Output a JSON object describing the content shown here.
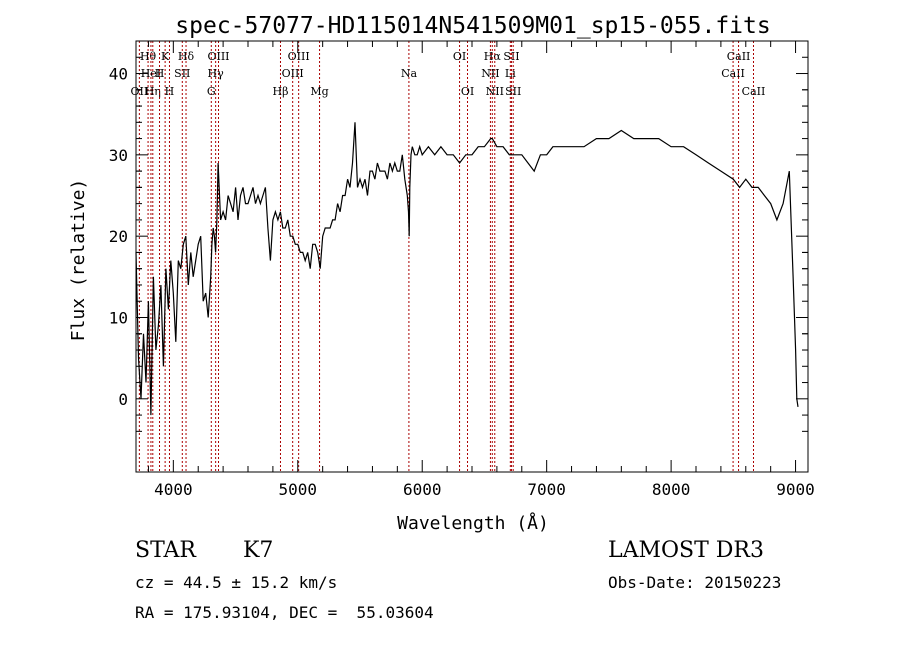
{
  "chart_data": {
    "type": "line",
    "title": "spec-57077-HD115014N541509M01_sp15-055.fits",
    "xlabel": "Wavelength (Å)",
    "ylabel": "Flux (relative)",
    "xlim": [
      3700,
      9100
    ],
    "ylim": [
      -9,
      44
    ],
    "x_ticks": [
      4000,
      5000,
      6000,
      7000,
      8000,
      9000
    ],
    "y_ticks": [
      0,
      10,
      20,
      30,
      40
    ],
    "grid": false,
    "series": [
      {
        "x": [
          3700,
          3720,
          3740,
          3760,
          3780,
          3800,
          3820,
          3840,
          3860,
          3880,
          3900,
          3920,
          3940,
          3960,
          3980,
          4000,
          4020,
          4040,
          4060,
          4080,
          4100,
          4120,
          4140,
          4160,
          4180,
          4200,
          4220,
          4240,
          4260,
          4280,
          4300,
          4310,
          4320,
          4330,
          4340,
          4350,
          4360,
          4380,
          4400,
          4420,
          4440,
          4460,
          4480,
          4500,
          4520,
          4540,
          4560,
          4580,
          4600,
          4620,
          4640,
          4660,
          4680,
          4700,
          4720,
          4740,
          4760,
          4780,
          4800,
          4820,
          4840,
          4860,
          4880,
          4900,
          4920,
          4940,
          4960,
          4980,
          5000,
          5020,
          5040,
          5060,
          5080,
          5100,
          5120,
          5140,
          5160,
          5180,
          5200,
          5220,
          5240,
          5260,
          5280,
          5300,
          5320,
          5340,
          5360,
          5380,
          5400,
          5420,
          5440,
          5460,
          5480,
          5500,
          5520,
          5540,
          5560,
          5580,
          5600,
          5620,
          5640,
          5660,
          5680,
          5700,
          5720,
          5740,
          5760,
          5780,
          5800,
          5820,
          5840,
          5860,
          5880,
          5890,
          5895,
          5900,
          5910,
          5920,
          5940,
          5960,
          5980,
          6000,
          6050,
          6100,
          6150,
          6200,
          6250,
          6300,
          6350,
          6400,
          6450,
          6500,
          6550,
          6563,
          6600,
          6650,
          6700,
          6750,
          6800,
          6850,
          6900,
          6950,
          7000,
          7050,
          7100,
          7150,
          7200,
          7300,
          7400,
          7500,
          7600,
          7700,
          7800,
          7900,
          8000,
          8100,
          8200,
          8300,
          8400,
          8500,
          8550,
          8600,
          8650,
          8700,
          8750,
          8800,
          8850,
          8900,
          8950,
          8980,
          9000,
          9010,
          9020
        ],
        "values": [
          18,
          5,
          0,
          8,
          2,
          12,
          -2,
          15,
          6,
          9,
          14,
          4,
          16,
          11,
          17,
          13,
          7,
          17,
          16,
          19,
          20,
          14,
          18,
          15,
          17,
          19,
          20,
          12,
          13,
          10,
          15,
          19,
          21,
          20,
          18,
          22,
          29,
          22,
          23,
          22,
          25,
          24,
          23,
          26,
          22,
          25,
          26,
          24,
          24,
          25,
          26,
          24,
          25,
          24,
          25,
          26,
          21,
          17,
          22,
          23,
          22,
          23,
          21,
          21,
          22,
          20,
          20,
          19,
          19,
          18,
          18,
          17,
          18,
          16,
          19,
          19,
          18,
          16,
          20,
          21,
          21,
          21,
          22,
          22,
          24,
          23,
          25,
          25,
          27,
          26,
          29,
          34,
          26,
          27,
          26,
          27,
          25,
          28,
          28,
          27,
          29,
          28,
          28,
          28,
          27,
          29,
          28,
          29,
          28,
          28,
          30,
          27,
          25,
          23,
          20,
          26,
          30,
          31,
          30,
          30,
          31,
          30,
          31,
          30,
          31,
          30,
          30,
          29,
          30,
          30,
          31,
          31,
          32,
          32,
          31,
          31,
          30,
          30,
          30,
          29,
          28,
          30,
          30,
          31,
          31,
          31,
          31,
          31,
          32,
          32,
          33,
          32,
          32,
          32,
          31,
          31,
          30,
          29,
          28,
          27,
          26,
          27,
          26,
          26,
          25,
          24,
          22,
          24,
          28,
          15,
          6,
          0,
          -1
        ]
      }
    ],
    "line_annotations": [
      {
        "label": "Hθ",
        "x": 3797,
        "row": 0
      },
      {
        "label": "OII",
        "x": 3727,
        "row": 2
      },
      {
        "label": "HeI",
        "x": 3820,
        "row": 1
      },
      {
        "label": "Hη",
        "x": 3835,
        "row": 2
      },
      {
        "label": "H",
        "x": 3889,
        "row": 1
      },
      {
        "label": "K",
        "x": 3934,
        "row": 0
      },
      {
        "label": "H",
        "x": 3969,
        "row": 2
      },
      {
        "label": "SII",
        "x": 4072,
        "row": 1
      },
      {
        "label": "Hδ",
        "x": 4102,
        "row": 0
      },
      {
        "label": "OIII",
        "x": 4363,
        "row": 0
      },
      {
        "label": "Hγ",
        "x": 4340,
        "row": 1
      },
      {
        "label": "G",
        "x": 4305,
        "row": 2
      },
      {
        "label": "Hβ",
        "x": 4861,
        "row": 2
      },
      {
        "label": "OIII",
        "x": 4959,
        "row": 1
      },
      {
        "label": "OIII",
        "x": 5007,
        "row": 0
      },
      {
        "label": "Mg",
        "x": 5175,
        "row": 2
      },
      {
        "label": "Na",
        "x": 5893,
        "row": 1
      },
      {
        "label": "OI",
        "x": 6300,
        "row": 0
      },
      {
        "label": "OI",
        "x": 6364,
        "row": 2
      },
      {
        "label": "Hα",
        "x": 6563,
        "row": 0
      },
      {
        "label": "NII",
        "x": 6548,
        "row": 1
      },
      {
        "label": "NII",
        "x": 6583,
        "row": 2
      },
      {
        "label": "SII",
        "x": 6717,
        "row": 0
      },
      {
        "label": "Li",
        "x": 6708,
        "row": 1
      },
      {
        "label": "SII",
        "x": 6731,
        "row": 2
      },
      {
        "label": "CaII",
        "x": 8498,
        "row": 1
      },
      {
        "label": "CaII",
        "x": 8542,
        "row": 0
      },
      {
        "label": "CaII",
        "x": 8662,
        "row": 2
      }
    ]
  },
  "info": {
    "class_label": "STAR",
    "subclass": "K7",
    "survey": "LAMOST DR3",
    "cz": "cz = 44.5 ± 15.2 km/s",
    "obs_date": "Obs-Date: 20150223",
    "radec": "RA = 175.93104, DEC =  55.03604"
  }
}
